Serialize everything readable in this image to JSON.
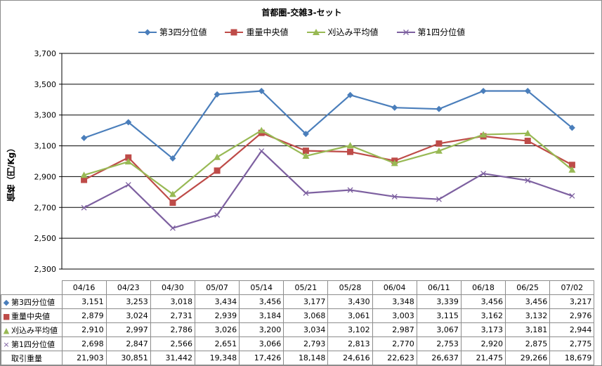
{
  "chart_data": {
    "type": "line",
    "title": "首都圏-交雑3-セット",
    "ylabel": "価格（円/Kg）",
    "ylim": [
      2300,
      3700
    ],
    "yticks": [
      "2,300",
      "2,500",
      "2,700",
      "2,900",
      "3,100",
      "3,300",
      "3,500",
      "3,700"
    ],
    "ytick_values": [
      2300,
      2500,
      2700,
      2900,
      3100,
      3300,
      3500,
      3700
    ],
    "categories": [
      "04/16",
      "04/23",
      "04/30",
      "05/07",
      "05/14",
      "05/21",
      "05/28",
      "06/04",
      "06/11",
      "06/18",
      "06/25",
      "07/02"
    ],
    "grid": true,
    "legend_position": "top",
    "series": [
      {
        "name": "第3四分位値",
        "color": "#4a7ebb",
        "marker": "diamond",
        "values": [
          3151,
          3253,
          3018,
          3434,
          3456,
          3177,
          3430,
          3348,
          3339,
          3456,
          3456,
          3217
        ],
        "display": [
          "3,151",
          "3,253",
          "3,018",
          "3,434",
          "3,456",
          "3,177",
          "3,430",
          "3,348",
          "3,339",
          "3,456",
          "3,456",
          "3,217"
        ]
      },
      {
        "name": "重量中央値",
        "color": "#be4b48",
        "marker": "square",
        "values": [
          2879,
          3024,
          2731,
          2939,
          3184,
          3068,
          3061,
          3003,
          3115,
          3162,
          3132,
          2976
        ],
        "display": [
          "2,879",
          "3,024",
          "2,731",
          "2,939",
          "3,184",
          "3,068",
          "3,061",
          "3,003",
          "3,115",
          "3,162",
          "3,132",
          "2,976"
        ]
      },
      {
        "name": "刈込み平均値",
        "color": "#98b954",
        "marker": "triangle",
        "values": [
          2910,
          2997,
          2786,
          3026,
          3200,
          3034,
          3102,
          2987,
          3067,
          3173,
          3181,
          2944
        ],
        "display": [
          "2,910",
          "2,997",
          "2,786",
          "3,026",
          "3,200",
          "3,034",
          "3,102",
          "2,987",
          "3,067",
          "3,173",
          "3,181",
          "2,944"
        ]
      },
      {
        "name": "第1四分位値",
        "color": "#7d60a0",
        "marker": "x",
        "values": [
          2698,
          2847,
          2566,
          2651,
          3066,
          2793,
          2813,
          2770,
          2753,
          2920,
          2875,
          2775
        ],
        "display": [
          "2,698",
          "2,847",
          "2,566",
          "2,651",
          "3,066",
          "2,793",
          "2,813",
          "2,770",
          "2,753",
          "2,920",
          "2,875",
          "2,775"
        ]
      }
    ],
    "table_extra_row": {
      "name": "取引重量",
      "values": [
        21903,
        30851,
        31442,
        19348,
        17426,
        18148,
        24616,
        22623,
        26637,
        21475,
        29266,
        18679
      ],
      "display": [
        "21,903",
        "30,851",
        "31,442",
        "19,348",
        "17,426",
        "18,148",
        "24,616",
        "22,623",
        "26,637",
        "21,475",
        "29,266",
        "18,679"
      ]
    }
  }
}
